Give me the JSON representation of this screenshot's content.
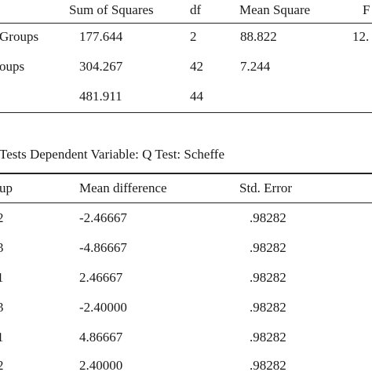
{
  "anova": {
    "headers": {
      "sum_of_squares": "Sum of Squares",
      "df": "df",
      "mean_square": "Mean Square",
      "f": "F"
    },
    "rows": [
      {
        "label": "Groups",
        "ss": "177.644",
        "df": "2",
        "ms": "88.822",
        "f": "12."
      },
      {
        "label": "oups",
        "ss": "304.267",
        "df": "42",
        "ms": "7.244",
        "f": ""
      },
      {
        "label": "",
        "ss": "481.911",
        "df": "44",
        "ms": "",
        "f": ""
      }
    ]
  },
  "posthoc": {
    "caption": "Tests Dependent Variable: Q Test: Scheffe",
    "headers": {
      "group": "up",
      "mean_difference": "Mean difference",
      "std_error": "Std. Error"
    },
    "rows": [
      {
        "group": "2",
        "md": "-2.46667",
        "se": ".98282"
      },
      {
        "group": "3",
        "md": "-4.86667",
        "se": ".98282"
      },
      {
        "group": "1",
        "md": "2.46667",
        "se": ".98282"
      },
      {
        "group": "3",
        "md": "-2.40000",
        "se": ".98282"
      },
      {
        "group": "1",
        "md": "4.86667",
        "se": ".98282"
      },
      {
        "group": "2",
        "md": "2.40000",
        "se": ".98282"
      }
    ]
  }
}
